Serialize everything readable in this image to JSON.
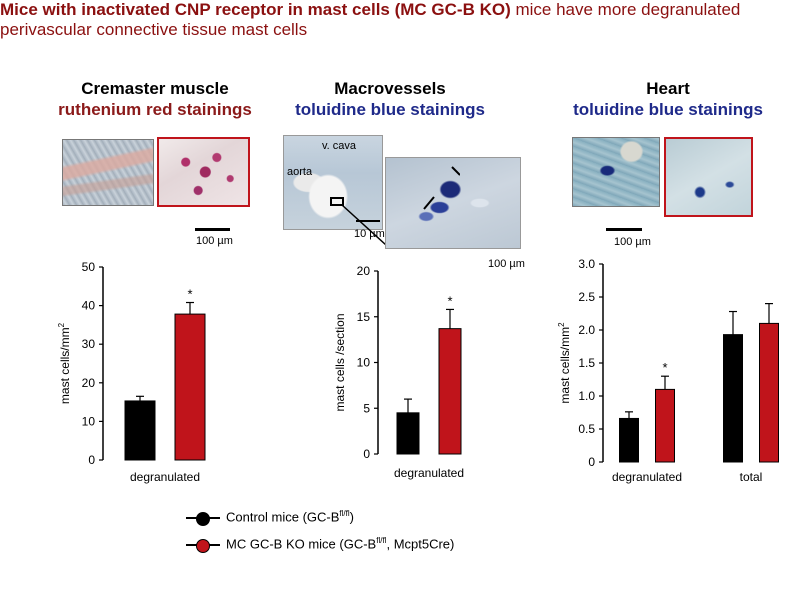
{
  "headline": {
    "bold": "Mice with inactivated CNP receptor in mast cells (MC GC-B KO)",
    "rest": " mice have more degranulated perivascular connective tissue mast cells"
  },
  "panels": [
    {
      "line1": "Cremaster muscle",
      "line2": "ruthenium red stainings"
    },
    {
      "line1": "Macrovessels",
      "line2": "toluidine blue stainings"
    },
    {
      "line1": "Heart",
      "line2": "toluidine blue stainings"
    }
  ],
  "micrographs": {
    "scale_label": "100 µm",
    "scale_label_inset": "100 µm",
    "scale_label_overview": "10 µm",
    "tissue_labels": {
      "vcava": "v. cava",
      "aorta": "aorta"
    }
  },
  "colors": {
    "control": "#000000",
    "ko": "#c0141b",
    "title": "#8b1010",
    "blue": "#1f2a8a"
  },
  "chart_data": [
    {
      "type": "bar",
      "categories": [
        "degranulated"
      ],
      "series": [
        {
          "name": "Control mice (GC-B fl/fl)",
          "values": [
            15.3
          ],
          "errors": [
            1.2
          ]
        },
        {
          "name": "MC GC-B KO mice (GC-B fl/fl, Mcpt5Cre)",
          "values": [
            37.8
          ],
          "errors": [
            3.0
          ]
        }
      ],
      "significance": [
        "*"
      ],
      "ylabel": "mast cells/mm²",
      "ylim": [
        0,
        50
      ],
      "yticks": [
        "0",
        "10",
        "20",
        "30",
        "40",
        "50"
      ],
      "grid": false
    },
    {
      "type": "bar",
      "categories": [
        "degranulated"
      ],
      "series": [
        {
          "name": "Control mice (GC-B fl/fl)",
          "values": [
            4.5
          ],
          "errors": [
            1.5
          ]
        },
        {
          "name": "MC GC-B KO mice (GC-B fl/fl, Mcpt5Cre)",
          "values": [
            13.7
          ],
          "errors": [
            2.1
          ]
        }
      ],
      "significance": [
        "*"
      ],
      "ylabel": "mast cells /section",
      "ylim": [
        0,
        20
      ],
      "yticks": [
        "0",
        "5",
        "10",
        "15",
        "20"
      ],
      "grid": false
    },
    {
      "type": "bar",
      "categories": [
        "degranulated",
        "total"
      ],
      "series": [
        {
          "name": "Control mice (GC-B fl/fl)",
          "values": [
            0.66,
            1.93
          ],
          "errors": [
            0.1,
            0.35
          ]
        },
        {
          "name": "MC GC-B KO mice (GC-B fl/fl, Mcpt5Cre)",
          "values": [
            1.1,
            2.1
          ],
          "errors": [
            0.2,
            0.3
          ]
        }
      ],
      "significance": [
        "*",
        ""
      ],
      "ylabel": "mast cells/mm²",
      "ylim": [
        0,
        3.0
      ],
      "yticks": [
        "0",
        "0.5",
        "1.0",
        "1.5",
        "2.0",
        "2.5",
        "3.0"
      ],
      "grid": false
    }
  ],
  "legend": {
    "control": {
      "text": "Control mice (GC-B",
      "sup": "fl/fl",
      "tail": ")"
    },
    "ko": {
      "text": "MC GC-B KO mice (GC-B",
      "sup": "fl/fl",
      "tail": ", Mcpt5Cre)"
    }
  }
}
